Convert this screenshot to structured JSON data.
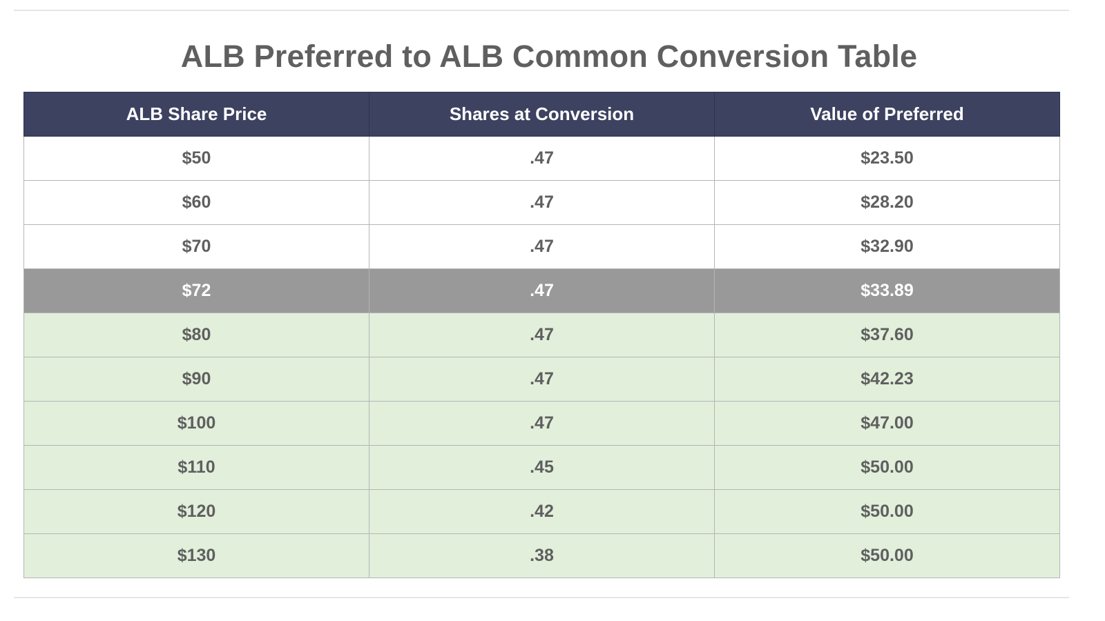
{
  "title": "ALB Preferred to ALB Common Conversion Table",
  "colors": {
    "header_bg": "#3d4261",
    "header_text": "#ffffff",
    "white_row": "#ffffff",
    "highlight_row": "#999999",
    "highlight_text": "#ffffff",
    "green_row": "#e2efdb",
    "body_text": "#5f5f5f"
  },
  "chart_data": {
    "type": "table",
    "title": "ALB Preferred to ALB Common Conversion Table",
    "columns": [
      "ALB Share Price",
      "Shares at Conversion",
      "Value of Preferred"
    ],
    "rows": [
      {
        "cells": [
          "$50",
          ".47",
          "$23.50"
        ],
        "style": "white"
      },
      {
        "cells": [
          "$60",
          ".47",
          "$28.20"
        ],
        "style": "white"
      },
      {
        "cells": [
          "$70",
          ".47",
          "$32.90"
        ],
        "style": "white"
      },
      {
        "cells": [
          "$72",
          ".47",
          "$33.89"
        ],
        "style": "highlight"
      },
      {
        "cells": [
          "$80",
          ".47",
          "$37.60"
        ],
        "style": "green"
      },
      {
        "cells": [
          "$90",
          ".47",
          "$42.23"
        ],
        "style": "green"
      },
      {
        "cells": [
          "$100",
          ".47",
          "$47.00"
        ],
        "style": "green"
      },
      {
        "cells": [
          "$110",
          ".45",
          "$50.00"
        ],
        "style": "green"
      },
      {
        "cells": [
          "$120",
          ".42",
          "$50.00"
        ],
        "style": "green"
      },
      {
        "cells": [
          "$130",
          ".38",
          "$50.00"
        ],
        "style": "green"
      }
    ]
  }
}
